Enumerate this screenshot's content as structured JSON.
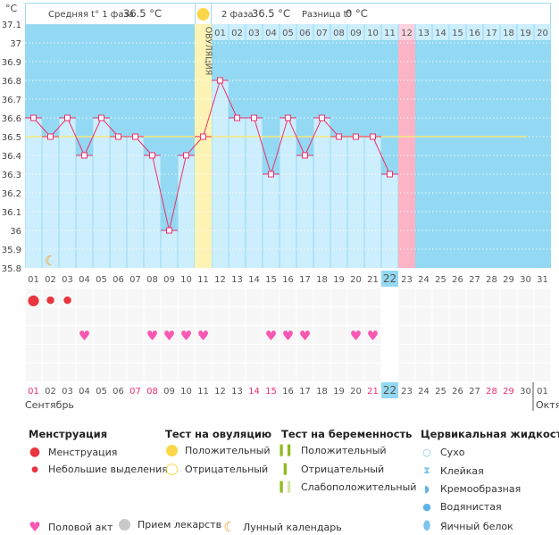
{
  "header": {
    "phase1_label": "Средняя t° 1 фаза",
    "phase1_value": "36.5 °C",
    "phase2_label": "2 фаза",
    "phase2_value": "36.5 °C",
    "diff_label": "Разница t°",
    "diff_value": "0 °C",
    "ovulation_label": "ОВУЛЯЦИЯ"
  },
  "chart_data": {
    "type": "line",
    "ylabel": "°C",
    "ylim": [
      35.8,
      37.1
    ],
    "yticks": [
      "37.1",
      "37",
      "36.9",
      "36.8",
      "36.7",
      "36.6",
      "36.5",
      "36.4",
      "36.3",
      "36.2",
      "36.1",
      "36",
      "35.9",
      "35.8"
    ],
    "days": [
      "01",
      "02",
      "03",
      "04",
      "05",
      "06",
      "07",
      "08",
      "09",
      "10",
      "11",
      "12",
      "13",
      "14",
      "15",
      "16",
      "17",
      "18",
      "19",
      "20",
      "21",
      "22",
      "23",
      "24",
      "25",
      "26",
      "27",
      "28",
      "29",
      "30",
      "31"
    ],
    "temperatures": [
      36.6,
      36.5,
      36.6,
      36.4,
      36.6,
      36.5,
      36.5,
      36.4,
      36.0,
      36.4,
      36.5,
      36.8,
      36.6,
      36.6,
      36.3,
      36.6,
      36.4,
      36.6,
      36.5,
      36.5,
      36.5,
      36.3
    ],
    "coverline": 36.5,
    "ovulation_day": 11,
    "today": 22,
    "predicted_period_day": 23,
    "phase2_days": [
      "01",
      "02",
      "03",
      "04",
      "05",
      "06",
      "07",
      "08",
      "09",
      "10",
      "11",
      "12",
      "13",
      "14",
      "15",
      "16",
      "17",
      "18",
      "19",
      "20"
    ],
    "moon_day": 2
  },
  "calendar": {
    "dates": [
      "01",
      "02",
      "03",
      "04",
      "05",
      "06",
      "07",
      "08",
      "09",
      "10",
      "11",
      "12",
      "13",
      "14",
      "15",
      "16",
      "17",
      "18",
      "19",
      "20",
      "21",
      "22",
      "23",
      "24",
      "25",
      "26",
      "27",
      "28",
      "29",
      "30"
    ],
    "weekend": [
      "01",
      "07",
      "08",
      "14",
      "15",
      "21",
      "28",
      "29"
    ],
    "next_month_date": "01",
    "month": "Сентябрь",
    "next_month": "Октя",
    "menstruation": {
      "1": "heavy",
      "2": "light",
      "3": "light"
    },
    "intercourse": [
      4,
      8,
      9,
      10,
      11,
      15,
      16,
      17,
      20,
      21
    ]
  },
  "legend": {
    "menstruation_title": "Менструация",
    "menstruation": "Менструация",
    "spotting": "Небольшие выделения",
    "ovulation_title": "Тест на овуляцию",
    "ov_positive": "Положительный",
    "ov_negative": "Отрицательный",
    "preg_title": "Тест на беременность",
    "preg_positive": "Положительный",
    "preg_negative": "Отрицательный",
    "preg_weak": "Слабоположительный",
    "cervical_title": "Цервикальная жидкость",
    "dry": "Сухо",
    "sticky": "Клейкая",
    "creamy": "Кремообразная",
    "watery": "Водянистая",
    "eggwhite": "Яичный белок",
    "intercourse": "Половой акт",
    "medicine": "Прием лекарств",
    "moon": "Лунный календарь"
  },
  "colors": {
    "bg": "#93d9f3",
    "bar": "#cdeefc",
    "ovulation": "#fdf3b4",
    "period": "#fbb3c6",
    "line": "#ee2f6a",
    "cover": "#f7e87a",
    "today": "#93d9f3",
    "weekend": "#ee2f6a"
  }
}
